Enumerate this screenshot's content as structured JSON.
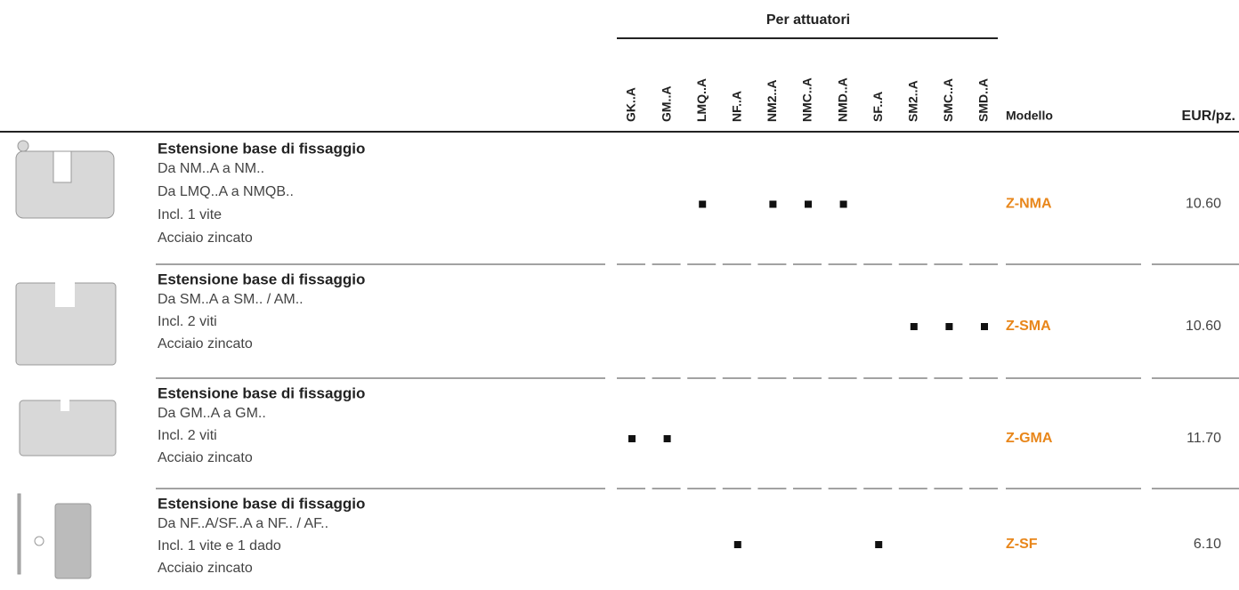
{
  "header": {
    "group_title": "Per attuatori",
    "columns": [
      "GK..A",
      "GM..A",
      "LMQ..A",
      "NF..A",
      "NM2..A",
      "NMC..A",
      "NMD..A",
      "SF..A",
      "SM2..A",
      "SMC..A",
      "SMD..A"
    ],
    "model": "Modello",
    "price": "EUR/pz."
  },
  "rows": [
    {
      "title": "Estensione base di fissaggio",
      "lines": [
        "Da NM..A a NM..",
        "Da LMQ..A a NMQB..",
        "Incl. 1 vite",
        "Acciaio zincato"
      ],
      "compatible": [
        false,
        false,
        true,
        false,
        true,
        true,
        true,
        false,
        false,
        false,
        false
      ],
      "model": "Z-NMA",
      "price": "10.60"
    },
    {
      "title": "Estensione base di fissaggio",
      "lines": [
        "Da SM..A a SM.. / AM..",
        "Incl. 2 viti",
        "Acciaio zincato"
      ],
      "compatible": [
        false,
        false,
        false,
        false,
        false,
        false,
        false,
        false,
        true,
        true,
        true
      ],
      "model": "Z-SMA",
      "price": "10.60"
    },
    {
      "title": "Estensione base di fissaggio",
      "lines": [
        "Da GM..A a GM..",
        "Incl. 2 viti",
        "Acciaio zincato"
      ],
      "compatible": [
        true,
        true,
        false,
        false,
        false,
        false,
        false,
        false,
        false,
        false,
        false
      ],
      "model": "Z-GMA",
      "price": "11.70"
    },
    {
      "title": "Estensione base di fissaggio",
      "lines": [
        "Da NF..A/SF..A a NF.. / AF..",
        "Incl. 1 vite e 1 dado",
        "Acciaio zincato"
      ],
      "compatible": [
        false,
        false,
        false,
        true,
        false,
        false,
        false,
        true,
        false,
        false,
        false
      ],
      "model": "Z-SF",
      "price": "6.10"
    }
  ]
}
